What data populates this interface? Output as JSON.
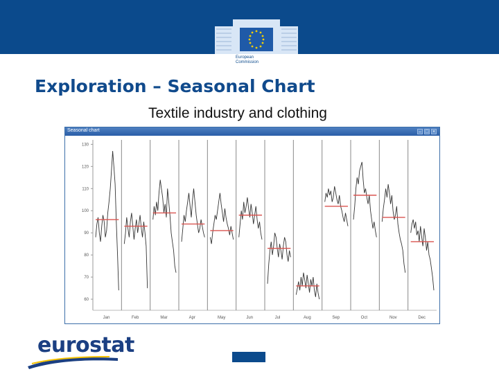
{
  "header": {
    "org_line1": "European",
    "org_line2": "Commission",
    "brand_color": "#0b4a8c"
  },
  "slide": {
    "title": "Exploration – Seasonal Chart",
    "subtitle": "Textile industry and clothing"
  },
  "window": {
    "title": "Seasonal chart",
    "buttons": [
      "minimize",
      "maximize",
      "close"
    ]
  },
  "chart_data": {
    "type": "line",
    "title": "",
    "xlabel": "",
    "ylabel": "",
    "ylim": [
      55,
      132
    ],
    "yticks": [
      130,
      120,
      110,
      100,
      90,
      80,
      70,
      60
    ],
    "categories": [
      "Jan",
      "Feb",
      "Mar",
      "Apr",
      "May",
      "Jun",
      "Jul",
      "Aug",
      "Sep",
      "Oct",
      "Nov",
      "Dec"
    ],
    "mean_line_color": "#d9534f",
    "series_color": "#333333",
    "months": [
      {
        "label": "Jan",
        "mean": 96,
        "values": [
          88,
          94,
          97,
          90,
          86,
          93,
          98,
          95,
          88,
          91,
          99,
          104,
          110,
          118,
          127,
          120,
          112,
          95,
          80,
          64
        ]
      },
      {
        "label": "Feb",
        "mean": 93,
        "values": [
          85,
          90,
          97,
          92,
          88,
          95,
          99,
          93,
          87,
          92,
          96,
          90,
          94,
          98,
          92,
          88,
          95,
          90,
          84,
          65
        ]
      },
      {
        "label": "Mar",
        "mean": 99,
        "values": [
          96,
          102,
          98,
          104,
          100,
          108,
          114,
          110,
          106,
          99,
          103,
          97,
          110,
          104,
          98,
          90,
          86,
          82,
          75,
          72
        ]
      },
      {
        "label": "Apr",
        "mean": 94,
        "values": [
          86,
          92,
          98,
          95,
          100,
          104,
          108,
          102,
          97,
          105,
          110,
          104,
          98,
          94,
          90,
          92,
          96,
          93,
          90,
          88
        ]
      },
      {
        "label": "May",
        "mean": 91,
        "values": [
          88,
          85,
          90,
          94,
          98,
          96,
          100,
          104,
          108,
          103,
          99,
          95,
          101,
          97,
          94,
          92,
          89,
          93,
          90,
          87
        ]
      },
      {
        "label": "Jun",
        "mean": 98,
        "values": [
          88,
          94,
          100,
          96,
          104,
          99,
          102,
          106,
          101,
          97,
          103,
          99,
          94,
          98,
          102,
          96,
          92,
          95,
          90,
          87
        ]
      },
      {
        "label": "Jul",
        "mean": 83,
        "values": [
          67,
          76,
          82,
          86,
          80,
          84,
          90,
          88,
          83,
          79,
          85,
          82,
          78,
          84,
          88,
          86,
          80,
          77,
          82,
          79
        ]
      },
      {
        "label": "Aug",
        "mean": 66,
        "values": [
          62,
          65,
          68,
          64,
          70,
          66,
          72,
          69,
          65,
          71,
          67,
          63,
          69,
          66,
          70,
          64,
          61,
          67,
          63,
          60
        ]
      },
      {
        "label": "Sep",
        "mean": 102,
        "values": [
          104,
          108,
          106,
          110,
          107,
          109,
          104,
          106,
          111,
          108,
          105,
          103,
          107,
          102,
          100,
          97,
          95,
          99,
          96,
          93
        ]
      },
      {
        "label": "Oct",
        "mean": 107,
        "values": [
          96,
          102,
          110,
          115,
          112,
          118,
          120,
          122,
          114,
          108,
          110,
          106,
          103,
          107,
          100,
          96,
          92,
          95,
          91,
          88
        ]
      },
      {
        "label": "Nov",
        "mean": 97,
        "values": [
          95,
          101,
          105,
          110,
          106,
          112,
          108,
          103,
          107,
          100,
          96,
          98,
          102,
          94,
          90,
          87,
          85,
          82,
          76,
          72
        ]
      },
      {
        "label": "Dec",
        "mean": 86,
        "values": [
          90,
          94,
          96,
          92,
          95,
          89,
          91,
          86,
          93,
          88,
          84,
          92,
          88,
          82,
          86,
          80,
          78,
          74,
          70,
          64
        ]
      }
    ]
  },
  "footer": {
    "logo_text": "eurostat"
  }
}
